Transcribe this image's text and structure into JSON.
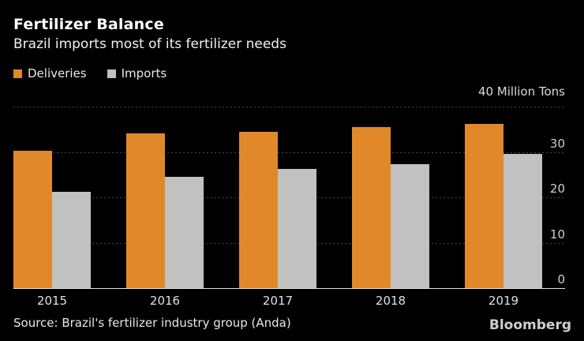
{
  "header": {
    "title": "Fertilizer Balance",
    "subtitle": "Brazil imports most of its fertilizer needs"
  },
  "chart_data": {
    "type": "bar",
    "title": "Fertilizer Balance",
    "subtitle": "Brazil imports most of its fertilizer needs",
    "categories": [
      "2015",
      "2016",
      "2017",
      "2018",
      "2019"
    ],
    "series": [
      {
        "name": "Deliveries",
        "color": "#e1892a",
        "values": [
          30.2,
          34.1,
          34.4,
          35.5,
          36.2
        ]
      },
      {
        "name": "Imports",
        "color": "#c1c1c1",
        "values": [
          21.2,
          24.5,
          26.2,
          27.3,
          29.5
        ]
      }
    ],
    "unit_label": "40 Million Tons",
    "xlabel": "",
    "ylabel": "",
    "ylim": [
      0,
      40
    ],
    "yticks": [
      0,
      10,
      20,
      30
    ],
    "gridlines": [
      10,
      20,
      30,
      40
    ],
    "grid_style": "dotted horizontal",
    "legend_position": "top-left",
    "background": "#000000"
  },
  "footer": {
    "source": "Source: Brazil's fertilizer industry group (Anda)",
    "logo": "Bloomberg"
  },
  "colors": {
    "background": "#000000",
    "deliveries": "#e1892a",
    "imports": "#c1c1c1",
    "gridline": "#474747",
    "axis_line": "#e0e0e0",
    "text": "#f2f2f2"
  }
}
